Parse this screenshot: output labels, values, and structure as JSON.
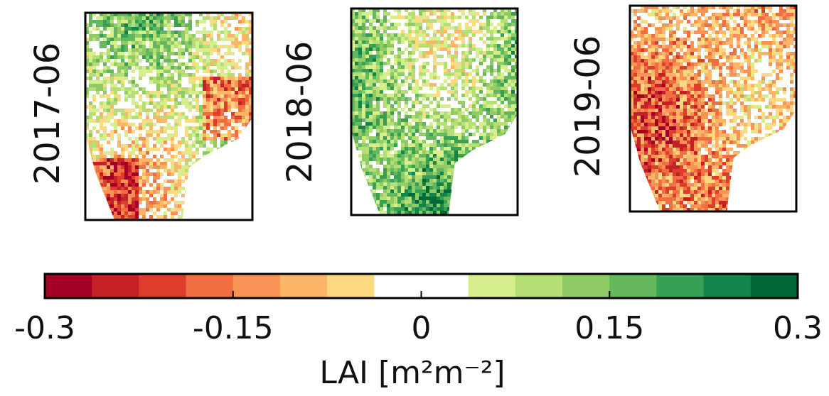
{
  "chart_data": {
    "type": "colorbar",
    "panels": [
      "2017-06",
      "2018-06",
      "2019-06"
    ],
    "label": "LAI [m²m⁻²]",
    "xlim": [
      -0.3,
      0.3
    ],
    "xticks": [
      -0.3,
      -0.15,
      0,
      0.15,
      0.3
    ],
    "colors": [
      "#a50026",
      "#c42126",
      "#dd3d2d",
      "#f16e43",
      "#f99355",
      "#fdb567",
      "#fdd981",
      "#ffffff",
      "#ffffff",
      "#d6ee8b",
      "#b5df74",
      "#8fcc65",
      "#64b65f",
      "#36a055",
      "#13844a",
      "#006837"
    ]
  }
}
